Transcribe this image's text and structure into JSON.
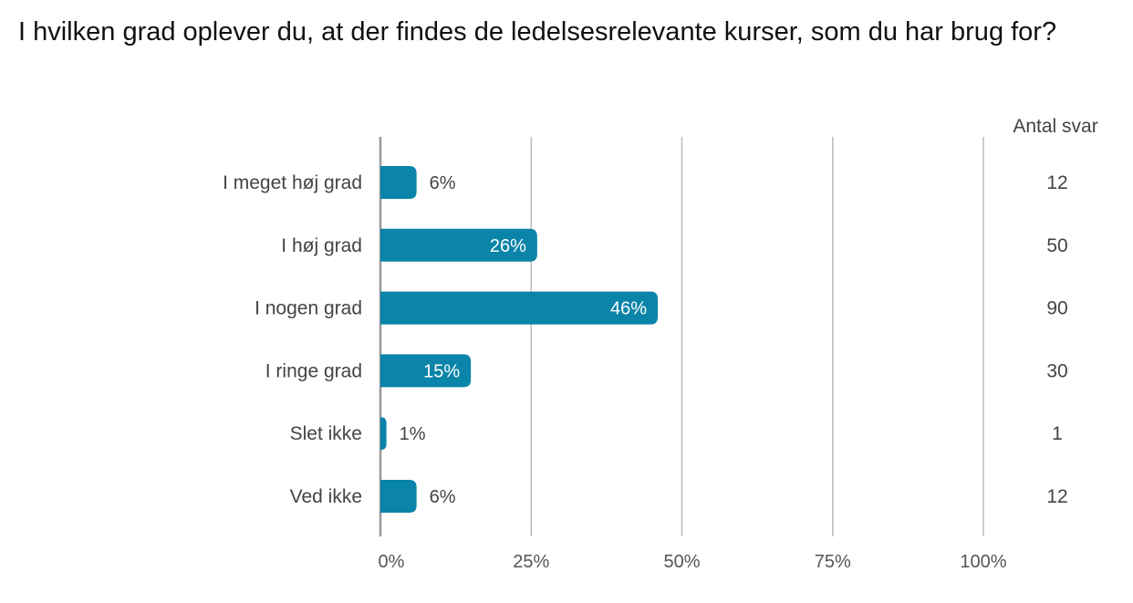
{
  "chart_data": {
    "type": "bar",
    "orientation": "horizontal",
    "title": "I hvilken grad oplever du, at der findes de ledelsesrelevante kurser, som du har brug for?",
    "categories": [
      "I meget høj grad",
      "I høj grad",
      "I nogen grad",
      "I ringe grad",
      "Slet ikke",
      "Ved ikke"
    ],
    "values": [
      6,
      26,
      46,
      15,
      1,
      6
    ],
    "value_labels": [
      "6%",
      "26%",
      "46%",
      "15%",
      "1%",
      "6%"
    ],
    "counts": [
      12,
      50,
      90,
      30,
      1,
      12
    ],
    "count_header": "Antal svar",
    "xlim": [
      0,
      100
    ],
    "xticks": [
      0,
      25,
      50,
      75,
      100
    ],
    "xtick_labels": [
      "0%",
      "25%",
      "50%",
      "75%",
      "100%"
    ],
    "xlabel": "",
    "ylabel": "",
    "grid": true,
    "bar_color": "#0a84a8"
  }
}
